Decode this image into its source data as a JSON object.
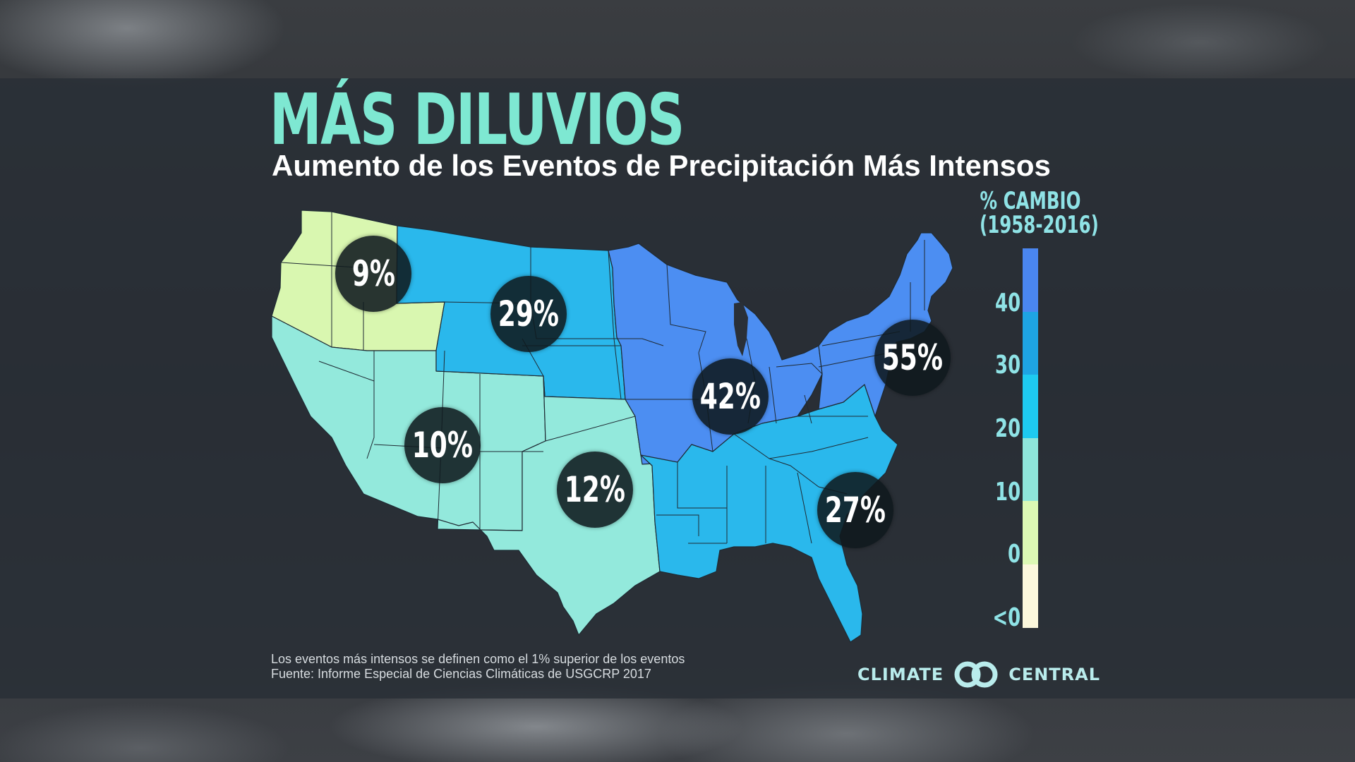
{
  "title": "MÁS DILUVIOS",
  "subtitle": "Aumento de los Eventos de Precipitación Más Intensos",
  "regions": [
    {
      "id": "northwest",
      "label": "9%",
      "value": 9,
      "color": "#d9f7b0"
    },
    {
      "id": "northern-great-plains",
      "label": "29%",
      "value": 29,
      "color": "#2ab8ec"
    },
    {
      "id": "southwest",
      "label": "10%",
      "value": 10,
      "color": "#93e9dc"
    },
    {
      "id": "southern-great-plains",
      "label": "12%",
      "value": 12,
      "color": "#93e9dc"
    },
    {
      "id": "midwest",
      "label": "42%",
      "value": 42,
      "color": "#4c8ef2"
    },
    {
      "id": "southeast",
      "label": "27%",
      "value": 27,
      "color": "#2ab8ec"
    },
    {
      "id": "northeast",
      "label": "55%",
      "value": 55,
      "color": "#4c8ef2"
    }
  ],
  "legend": {
    "title_line1": "% CAMBIO",
    "title_line2": "(1958-2016)",
    "colors": [
      "#4a86f0",
      "#1ea4e3",
      "#1ecaf0",
      "#8ee5da",
      "#dcf8b4",
      "#fbf7dc"
    ],
    "labels": [
      "40",
      "30",
      "20",
      "10",
      "0",
      "<0"
    ]
  },
  "footnote": {
    "line1": "Los eventos más intensos se definen como el 1% superior de los eventos",
    "line2": "Fuente: Informe Especial de Ciencias Climáticas de USGCRP 2017"
  },
  "logo": {
    "left": "CLIMATE",
    "right": "CENTRAL"
  }
}
